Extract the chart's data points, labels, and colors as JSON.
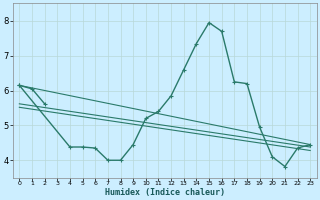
{
  "xlabel": "Humidex (Indice chaleur)",
  "bg_color": "#cceeff",
  "grid_color": "#b8d8d8",
  "line_color": "#2a7a6a",
  "x_ticks": [
    0,
    1,
    2,
    3,
    4,
    5,
    6,
    7,
    8,
    9,
    10,
    11,
    12,
    13,
    14,
    15,
    16,
    17,
    18,
    19,
    20,
    21,
    22,
    23
  ],
  "ylim": [
    3.5,
    8.5
  ],
  "xlim": [
    -0.5,
    23.5
  ],
  "y_ticks": [
    4,
    5,
    6,
    7,
    8
  ],
  "series": {
    "line_main": {
      "x": [
        0,
        4,
        5,
        6,
        7,
        8,
        9,
        10,
        11,
        12,
        13,
        14,
        15,
        16,
        17,
        18,
        19,
        20,
        21,
        22,
        23
      ],
      "y": [
        6.15,
        4.38,
        4.38,
        4.35,
        4.0,
        4.0,
        4.45,
        5.2,
        5.4,
        5.85,
        6.6,
        7.35,
        7.95,
        7.7,
        6.25,
        6.2,
        4.95,
        4.1,
        3.82,
        4.35,
        4.45
      ]
    },
    "line_short": {
      "x": [
        0,
        1,
        2
      ],
      "y": [
        6.15,
        6.05,
        5.62
      ]
    },
    "line_trend1": {
      "x": [
        0,
        23
      ],
      "y": [
        6.15,
        4.45
      ]
    },
    "line_trend2": {
      "x": [
        0,
        23
      ],
      "y": [
        5.62,
        4.38
      ]
    },
    "line_trend3": {
      "x": [
        0,
        23
      ],
      "y": [
        5.52,
        4.28
      ]
    }
  }
}
